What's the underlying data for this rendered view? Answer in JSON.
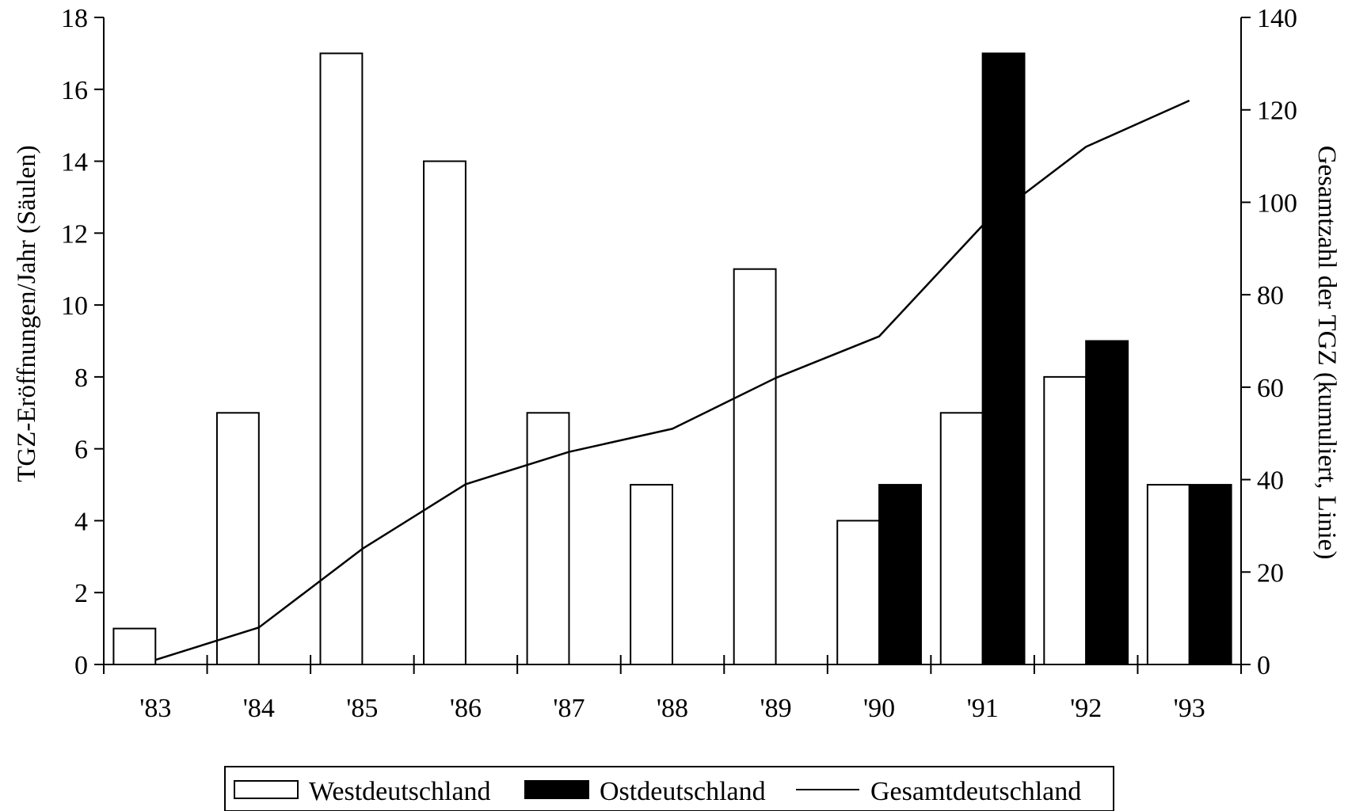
{
  "chart_data": {
    "type": "bar",
    "categories": [
      "'83",
      "'84",
      "'85",
      "'86",
      "'87",
      "'88",
      "'89",
      "'90",
      "'91",
      "'92",
      "'93"
    ],
    "series": [
      {
        "name": "Westdeutschland",
        "type": "bar",
        "axis": "left",
        "color": "#ffffff",
        "values": [
          1,
          7,
          17,
          14,
          7,
          5,
          11,
          4,
          7,
          8,
          5
        ]
      },
      {
        "name": "Ostdeutschland",
        "type": "bar",
        "axis": "left",
        "color": "#000000",
        "values": [
          null,
          null,
          null,
          null,
          null,
          null,
          null,
          5,
          17,
          9,
          5
        ]
      },
      {
        "name": "Gesamtdeutschland",
        "type": "line",
        "axis": "right",
        "color": "#000000",
        "values": [
          1,
          8,
          25,
          39,
          46,
          51,
          62,
          71,
          95,
          112,
          122
        ]
      }
    ],
    "ylabel": "TGZ-Eröffnungen/Jahr (Säulen)",
    "y2label": "Gesamtzahl der TGZ (kumuliert, Linie)",
    "ylim": [
      0,
      18
    ],
    "y2lim": [
      0,
      140
    ],
    "yticks": [
      "0",
      "2",
      "4",
      "6",
      "8",
      "10",
      "12",
      "14",
      "16",
      "18"
    ],
    "y2ticks": [
      "0",
      "20",
      "40",
      "60",
      "80",
      "100",
      "120",
      "140"
    ],
    "grid": false,
    "legend": "bottom"
  }
}
